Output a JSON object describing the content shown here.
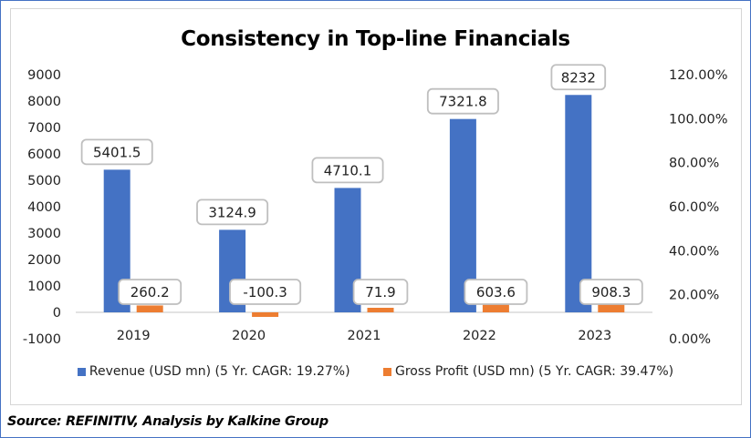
{
  "chart_data": {
    "type": "bar",
    "title": "Consistency in Top-line Financials",
    "categories": [
      "2019",
      "2020",
      "2021",
      "2022",
      "2023"
    ],
    "series": [
      {
        "name": "Revenue (USD mn) (5 Yr. CAGR: 19.27%)",
        "color": "#4472c4",
        "values": [
          5401.5,
          3124.9,
          4710.1,
          7321.8,
          8232
        ]
      },
      {
        "name": "Gross Profit (USD mn) (5 Yr. CAGR: 39.47%)",
        "color": "#ed7d31",
        "values": [
          260.2,
          -100.3,
          71.9,
          603.6,
          908.3
        ]
      }
    ],
    "data_labels": {
      "revenue": [
        "5401.5",
        "3124.9",
        "4710.1",
        "7321.8",
        "8232"
      ],
      "gross_profit": [
        "260.2",
        "-100.3",
        "71.9",
        "603.6",
        "908.3"
      ]
    },
    "y_left": {
      "ylim": [
        -1000,
        9000
      ],
      "ticks": [
        "9000",
        "8000",
        "7000",
        "6000",
        "5000",
        "4000",
        "3000",
        "2000",
        "1000",
        "0",
        "-1000"
      ]
    },
    "y_right": {
      "ylim": [
        0,
        1.2
      ],
      "ticks": [
        "120.00%",
        "100.00%",
        "80.00%",
        "60.00%",
        "40.00%",
        "20.00%",
        "0.00%"
      ]
    },
    "xlabel": "",
    "ylabel": "",
    "grid": false,
    "legend_position": "bottom"
  },
  "legend": {
    "revenue_label": "Revenue (USD mn) (5 Yr. CAGR: 19.27%)",
    "gross_profit_label": "Gross Profit (USD mn) (5 Yr. CAGR: 39.47%)"
  },
  "source": "Source: REFINITIV, Analysis by Kalkine Group"
}
